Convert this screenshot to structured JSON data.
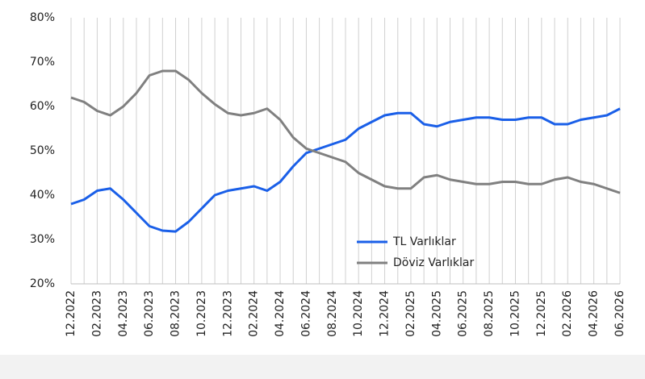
{
  "chart_data": {
    "type": "line",
    "categories": [
      "12.2022",
      null,
      "02.2023",
      null,
      "04.2023",
      null,
      "06.2023",
      null,
      "08.2023",
      null,
      "10.2023",
      null,
      "12.2023",
      null,
      "02.2024",
      null,
      "04.2024",
      null,
      "06.2024",
      null,
      "08.2024",
      null,
      "10.2024",
      null,
      "12.2024",
      null,
      "02.2025",
      null,
      "04.2025",
      null,
      "06.2025",
      null,
      "08.2025",
      null,
      "10.2025",
      null,
      "12.2025",
      null,
      "02.2026",
      null,
      "04.2026",
      null,
      "06.2026"
    ],
    "series": [
      {
        "name": "TL Varlıklar",
        "color": "#1a5fe8",
        "values": [
          38,
          39,
          41,
          41.5,
          39,
          36,
          33,
          32,
          31.8,
          34,
          37,
          40,
          41,
          41.5,
          42,
          41,
          43,
          46.5,
          49.5,
          50.5,
          51.5,
          52.5,
          55,
          56.5,
          58,
          58.5,
          58.5,
          56,
          55.5,
          56.5,
          57,
          57.5,
          57.5,
          57,
          57,
          57.5,
          57.5,
          56,
          56,
          57,
          57.5,
          58,
          59.5
        ]
      },
      {
        "name": "Döviz Varlıklar",
        "color": "#808080",
        "values": [
          62,
          61,
          59,
          58,
          60,
          63,
          67,
          68,
          68,
          66,
          63,
          60.5,
          58.5,
          58,
          58.5,
          59.5,
          57,
          53,
          50.5,
          49.5,
          48.5,
          47.5,
          45,
          43.5,
          42,
          41.5,
          41.5,
          44,
          44.5,
          43.5,
          43,
          42.5,
          42.5,
          43,
          43,
          42.5,
          42.5,
          43.5,
          44,
          43,
          42.5,
          41.5,
          40.5
        ]
      }
    ],
    "ylim": [
      20,
      80
    ],
    "yticks": [
      {
        "value": 20,
        "label": "20%"
      },
      {
        "value": 30,
        "label": "30%"
      },
      {
        "value": 40,
        "label": "40%"
      },
      {
        "value": 50,
        "label": "50%"
      },
      {
        "value": 60,
        "label": "60%"
      },
      {
        "value": 70,
        "label": "70%"
      },
      {
        "value": 80,
        "label": "80%"
      }
    ],
    "grid": true
  }
}
